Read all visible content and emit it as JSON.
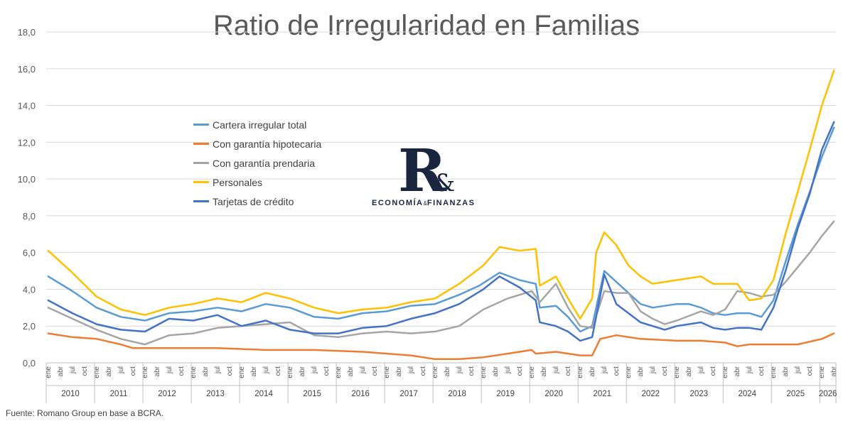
{
  "title": "Ratio de Irregularidad en Familias",
  "source": "Fuente: Romano Group en base a BCRA.",
  "logo": {
    "mark": "R",
    "amp": "&",
    "text_left": "ECONOMÍA",
    "text_amp": "&",
    "text_right": "FINANZAS"
  },
  "chart_data": {
    "type": "line",
    "title": "Ratio de Irregularidad en Familias",
    "ylim": [
      0,
      18
    ],
    "yticks": [
      "0,0",
      "2,0",
      "4,0",
      "6,0",
      "8,0",
      "10,0",
      "12,0",
      "14,0",
      "16,0",
      "18,0"
    ],
    "ytick_values": [
      0,
      2,
      4,
      6,
      8,
      10,
      12,
      14,
      16,
      18
    ],
    "grid": true,
    "legend_position": "upper-left",
    "month_labels": [
      "ene",
      "abr",
      "jul",
      "oct"
    ],
    "years": [
      "2010",
      "2011",
      "2012",
      "2013",
      "2014",
      "2015",
      "2016",
      "2017",
      "2018",
      "2019",
      "2020",
      "2021",
      "2022",
      "2023",
      "2024",
      "2025",
      "2026"
    ],
    "x_start": "2010-01",
    "x_end": "2026-04",
    "series": [
      {
        "name": "Cartera irregular total",
        "color": "#5b9bd5",
        "points": [
          [
            "2010-01",
            4.7
          ],
          [
            "2010-07",
            3.9
          ],
          [
            "2011-01",
            3.0
          ],
          [
            "2011-07",
            2.5
          ],
          [
            "2012-01",
            2.3
          ],
          [
            "2012-07",
            2.7
          ],
          [
            "2013-01",
            2.8
          ],
          [
            "2013-07",
            3.0
          ],
          [
            "2014-01",
            2.8
          ],
          [
            "2014-07",
            3.2
          ],
          [
            "2015-01",
            3.0
          ],
          [
            "2015-07",
            2.5
          ],
          [
            "2016-01",
            2.4
          ],
          [
            "2016-07",
            2.7
          ],
          [
            "2017-01",
            2.8
          ],
          [
            "2017-07",
            3.1
          ],
          [
            "2018-01",
            3.2
          ],
          [
            "2018-07",
            3.7
          ],
          [
            "2018-12",
            4.2
          ],
          [
            "2019-05",
            4.9
          ],
          [
            "2019-10",
            4.5
          ],
          [
            "2020-02",
            4.3
          ],
          [
            "2020-03",
            3.0
          ],
          [
            "2020-07",
            3.1
          ],
          [
            "2020-10",
            2.5
          ],
          [
            "2021-01",
            1.7
          ],
          [
            "2021-04",
            2.0
          ],
          [
            "2021-05",
            3.0
          ],
          [
            "2021-07",
            5.0
          ],
          [
            "2021-10",
            4.4
          ],
          [
            "2022-01",
            3.8
          ],
          [
            "2022-04",
            3.2
          ],
          [
            "2022-07",
            3.0
          ],
          [
            "2022-10",
            3.1
          ],
          [
            "2023-01",
            3.2
          ],
          [
            "2023-04",
            3.2
          ],
          [
            "2023-07",
            3.0
          ],
          [
            "2023-10",
            2.7
          ],
          [
            "2024-01",
            2.6
          ],
          [
            "2024-04",
            2.7
          ],
          [
            "2024-07",
            2.7
          ],
          [
            "2024-10",
            2.5
          ],
          [
            "2025-01",
            3.4
          ],
          [
            "2025-04",
            5.5
          ],
          [
            "2025-07",
            7.5
          ],
          [
            "2025-10",
            9.3
          ],
          [
            "2026-01",
            11.2
          ],
          [
            "2026-04",
            12.8
          ]
        ]
      },
      {
        "name": "Con garantía hipotecaria",
        "color": "#ed7d31",
        "points": [
          [
            "2010-01",
            1.6
          ],
          [
            "2010-07",
            1.4
          ],
          [
            "2011-01",
            1.3
          ],
          [
            "2011-07",
            1.0
          ],
          [
            "2011-10",
            0.8
          ],
          [
            "2012-07",
            0.8
          ],
          [
            "2013-07",
            0.8
          ],
          [
            "2014-07",
            0.7
          ],
          [
            "2015-07",
            0.7
          ],
          [
            "2016-07",
            0.6
          ],
          [
            "2017-07",
            0.4
          ],
          [
            "2018-01",
            0.2
          ],
          [
            "2018-07",
            0.2
          ],
          [
            "2019-01",
            0.3
          ],
          [
            "2019-07",
            0.5
          ],
          [
            "2019-10",
            0.6
          ],
          [
            "2020-01",
            0.7
          ],
          [
            "2020-02",
            0.5
          ],
          [
            "2020-07",
            0.6
          ],
          [
            "2021-01",
            0.4
          ],
          [
            "2021-04",
            0.4
          ],
          [
            "2021-06",
            1.3
          ],
          [
            "2021-10",
            1.5
          ],
          [
            "2022-04",
            1.3
          ],
          [
            "2023-01",
            1.2
          ],
          [
            "2023-07",
            1.2
          ],
          [
            "2024-01",
            1.1
          ],
          [
            "2024-04",
            0.9
          ],
          [
            "2024-07",
            1.0
          ],
          [
            "2025-01",
            1.0
          ],
          [
            "2025-07",
            1.0
          ],
          [
            "2026-01",
            1.3
          ],
          [
            "2026-04",
            1.6
          ]
        ]
      },
      {
        "name": "Con garantía prendaria",
        "color": "#a5a5a5",
        "points": [
          [
            "2010-01",
            3.0
          ],
          [
            "2010-07",
            2.4
          ],
          [
            "2011-01",
            1.8
          ],
          [
            "2011-07",
            1.3
          ],
          [
            "2012-01",
            1.0
          ],
          [
            "2012-07",
            1.5
          ],
          [
            "2013-01",
            1.6
          ],
          [
            "2013-07",
            1.9
          ],
          [
            "2014-01",
            2.0
          ],
          [
            "2014-07",
            2.1
          ],
          [
            "2015-01",
            2.2
          ],
          [
            "2015-07",
            1.5
          ],
          [
            "2016-01",
            1.4
          ],
          [
            "2016-07",
            1.6
          ],
          [
            "2017-01",
            1.7
          ],
          [
            "2017-07",
            1.6
          ],
          [
            "2018-01",
            1.7
          ],
          [
            "2018-07",
            2.0
          ],
          [
            "2019-01",
            2.9
          ],
          [
            "2019-07",
            3.5
          ],
          [
            "2020-01",
            3.9
          ],
          [
            "2020-03",
            3.3
          ],
          [
            "2020-07",
            4.3
          ],
          [
            "2020-10",
            3.0
          ],
          [
            "2021-01",
            2.0
          ],
          [
            "2021-04",
            1.9
          ],
          [
            "2021-07",
            3.9
          ],
          [
            "2021-10",
            3.8
          ],
          [
            "2022-01",
            3.8
          ],
          [
            "2022-04",
            2.8
          ],
          [
            "2022-07",
            2.4
          ],
          [
            "2022-10",
            2.1
          ],
          [
            "2023-01",
            2.3
          ],
          [
            "2023-07",
            2.8
          ],
          [
            "2023-10",
            2.6
          ],
          [
            "2024-01",
            2.9
          ],
          [
            "2024-04",
            3.9
          ],
          [
            "2024-07",
            3.8
          ],
          [
            "2024-10",
            3.6
          ],
          [
            "2025-01",
            3.7
          ],
          [
            "2025-04",
            4.4
          ],
          [
            "2025-07",
            5.2
          ],
          [
            "2025-10",
            6.0
          ],
          [
            "2026-01",
            6.9
          ],
          [
            "2026-04",
            7.7
          ]
        ]
      },
      {
        "name": "Personales",
        "color": "#ffc000",
        "points": [
          [
            "2010-01",
            6.1
          ],
          [
            "2010-07",
            4.9
          ],
          [
            "2011-01",
            3.6
          ],
          [
            "2011-07",
            2.9
          ],
          [
            "2012-01",
            2.6
          ],
          [
            "2012-07",
            3.0
          ],
          [
            "2013-01",
            3.2
          ],
          [
            "2013-07",
            3.5
          ],
          [
            "2014-01",
            3.3
          ],
          [
            "2014-07",
            3.8
          ],
          [
            "2015-01",
            3.5
          ],
          [
            "2015-07",
            3.0
          ],
          [
            "2016-01",
            2.7
          ],
          [
            "2016-07",
            2.9
          ],
          [
            "2017-01",
            3.0
          ],
          [
            "2017-07",
            3.3
          ],
          [
            "2018-01",
            3.5
          ],
          [
            "2018-07",
            4.3
          ],
          [
            "2019-01",
            5.3
          ],
          [
            "2019-05",
            6.3
          ],
          [
            "2019-10",
            6.1
          ],
          [
            "2020-02",
            6.2
          ],
          [
            "2020-03",
            4.2
          ],
          [
            "2020-07",
            4.7
          ],
          [
            "2020-10",
            3.5
          ],
          [
            "2021-01",
            2.4
          ],
          [
            "2021-04",
            3.5
          ],
          [
            "2021-05",
            6.0
          ],
          [
            "2021-07",
            7.1
          ],
          [
            "2021-10",
            6.4
          ],
          [
            "2022-01",
            5.3
          ],
          [
            "2022-04",
            4.7
          ],
          [
            "2022-07",
            4.3
          ],
          [
            "2022-10",
            4.4
          ],
          [
            "2023-01",
            4.5
          ],
          [
            "2023-07",
            4.7
          ],
          [
            "2023-10",
            4.3
          ],
          [
            "2024-01",
            4.3
          ],
          [
            "2024-04",
            4.3
          ],
          [
            "2024-07",
            3.4
          ],
          [
            "2024-10",
            3.5
          ],
          [
            "2025-01",
            4.5
          ],
          [
            "2025-04",
            7.0
          ],
          [
            "2025-07",
            9.3
          ],
          [
            "2025-10",
            11.6
          ],
          [
            "2026-01",
            14.0
          ],
          [
            "2026-04",
            15.9
          ]
        ]
      },
      {
        "name": "Tarjetas de crédito",
        "color": "#4472c4",
        "points": [
          [
            "2010-01",
            3.4
          ],
          [
            "2010-07",
            2.7
          ],
          [
            "2011-01",
            2.1
          ],
          [
            "2011-07",
            1.8
          ],
          [
            "2012-01",
            1.7
          ],
          [
            "2012-07",
            2.4
          ],
          [
            "2013-01",
            2.3
          ],
          [
            "2013-07",
            2.6
          ],
          [
            "2014-01",
            2.0
          ],
          [
            "2014-07",
            2.3
          ],
          [
            "2015-01",
            1.8
          ],
          [
            "2015-07",
            1.6
          ],
          [
            "2016-01",
            1.6
          ],
          [
            "2016-07",
            1.9
          ],
          [
            "2017-01",
            2.0
          ],
          [
            "2017-07",
            2.4
          ],
          [
            "2018-01",
            2.7
          ],
          [
            "2018-07",
            3.2
          ],
          [
            "2019-01",
            4.0
          ],
          [
            "2019-05",
            4.7
          ],
          [
            "2019-10",
            4.1
          ],
          [
            "2020-02",
            3.4
          ],
          [
            "2020-03",
            2.2
          ],
          [
            "2020-07",
            2.0
          ],
          [
            "2020-10",
            1.7
          ],
          [
            "2021-01",
            1.2
          ],
          [
            "2021-04",
            1.4
          ],
          [
            "2021-05",
            2.5
          ],
          [
            "2021-07",
            4.8
          ],
          [
            "2021-10",
            3.2
          ],
          [
            "2022-01",
            2.7
          ],
          [
            "2022-04",
            2.2
          ],
          [
            "2022-07",
            2.0
          ],
          [
            "2022-10",
            1.8
          ],
          [
            "2023-01",
            2.0
          ],
          [
            "2023-07",
            2.2
          ],
          [
            "2023-10",
            1.9
          ],
          [
            "2024-01",
            1.8
          ],
          [
            "2024-04",
            1.9
          ],
          [
            "2024-07",
            1.9
          ],
          [
            "2024-10",
            1.8
          ],
          [
            "2025-01",
            3.0
          ],
          [
            "2025-04",
            5.0
          ],
          [
            "2025-07",
            7.3
          ],
          [
            "2025-10",
            9.2
          ],
          [
            "2026-01",
            11.6
          ],
          [
            "2026-04",
            13.1
          ]
        ]
      }
    ]
  }
}
